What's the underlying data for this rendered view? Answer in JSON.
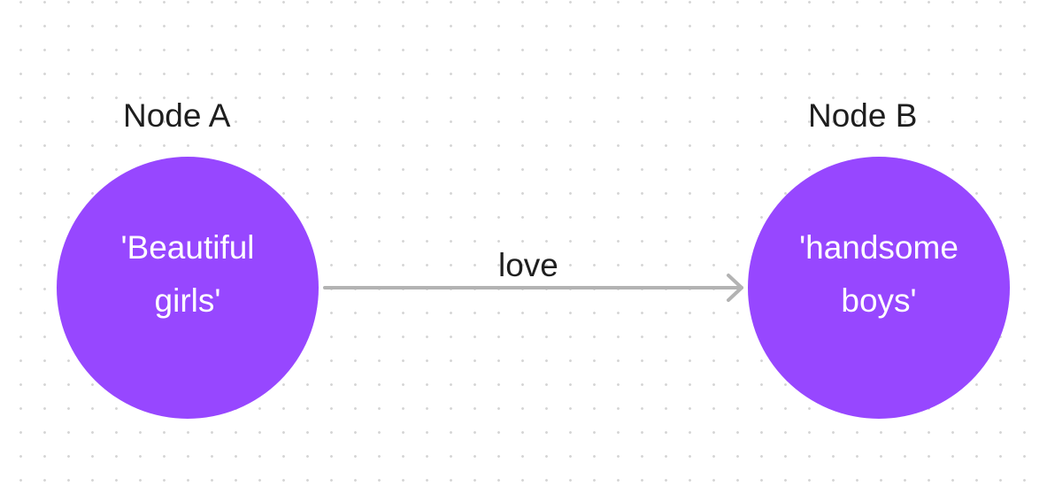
{
  "diagram": {
    "nodes": [
      {
        "id": "a",
        "title": "Node A",
        "value_line1": "'Beautiful",
        "value_line2": "girls'",
        "color": "#9747ff"
      },
      {
        "id": "b",
        "title": "Node B",
        "value_line1": "'handsome",
        "value_line2": "boys'",
        "color": "#9747ff"
      }
    ],
    "edges": [
      {
        "from": "a",
        "to": "b",
        "label": "love",
        "color": "#b3b3b3"
      }
    ]
  }
}
